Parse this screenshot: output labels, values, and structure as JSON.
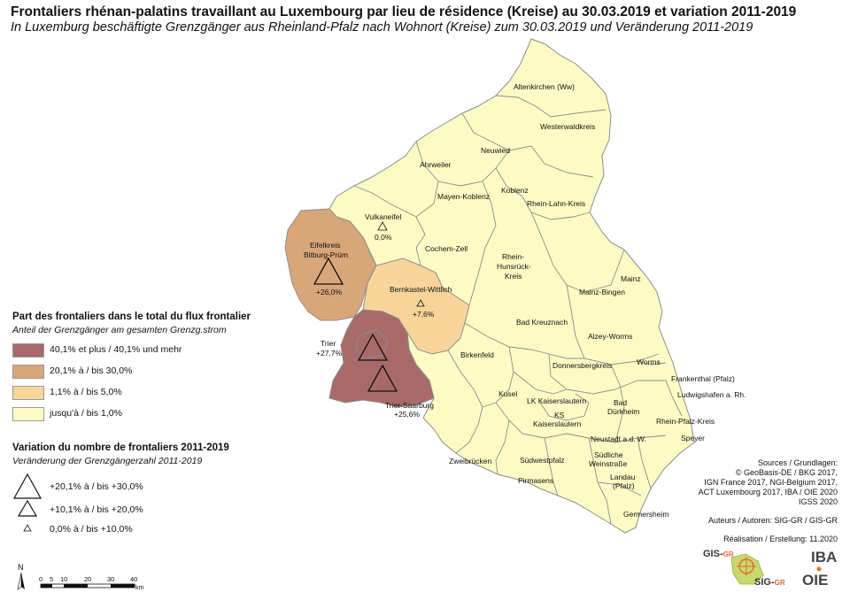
{
  "title": "Frontaliers rhénan-palatins travaillant au Luxembourg par lieu de résidence (Kreise) au 30.03.2019 et variation 2011-2019",
  "subtitle": "In Luxemburg beschäftigte Grenzgänger aus Rheinland-Pfalz nach Wohnort (Kreise) zum 30.03.2019 und Veränderung 2011-2019",
  "colors": {
    "cat1": "#a86a68",
    "cat2": "#d9a679",
    "cat3": "#f7d59a",
    "cat4": "#fdfbc4",
    "border": "#8c8c8c"
  },
  "districts": [
    "Altenkirchen (Ww)",
    "Westerwaldkreis",
    "Neuwied",
    "Ahrweiler",
    "Koblenz",
    "Mayen-Koblenz",
    "Rhein-Lahn-Kreis",
    "Vulkaneifel",
    "Eifelkreis Bitburg-Prüm",
    "Cochem-Zell",
    "Rhein-Hunsrück-Kreis",
    "Bernkastel-Wittlich",
    "Mainz",
    "Mainz-Bingen",
    "Bad Kreuznach",
    "Alzey-Worms",
    "Trier",
    "Birkenfeld",
    "Donnersbergkreis",
    "Worms",
    "Frankenthal (Pfalz)",
    "Ludwigshafen a. Rh.",
    "Trier-Saarburg",
    "Kusel",
    "LK Kaiserslautern",
    "Bad Dürkheim",
    "KS Kaiserslautern",
    "Rhein-Pfalz-Kreis",
    "Neustadt a.d. W.",
    "Speyer",
    "Zweibrücken",
    "Südwestpfalz",
    "Südliche Weinstraße",
    "Pirmasens",
    "Landau (Pfalz)",
    "Germersheim"
  ],
  "map_labels": {
    "altenkirchen": "Altenkirchen (Ww)",
    "westerwald": "Westerwaldkreis",
    "neuwied": "Neuwied",
    "ahrweiler": "Ahrweiler",
    "koblenz": "Koblenz",
    "mayen": "Mayen-Koblenz",
    "rheinlahn": "Rhein-Lahn-Kreis",
    "vulkaneifel": "Vulkaneifel",
    "vulkaneifel_var": "0,0%",
    "eifel1": "Eifelkreis",
    "eifel2": "Bitburg-Prüm",
    "eifel_var": "+26,0%",
    "cochem": "Cochem-Zell",
    "rh1": "Rhein-",
    "rh2": "Hunsrück-",
    "rh3": "Kreis",
    "bernkastel": "Bernkastel-Wittlich",
    "bernkastel_var": "+7,6%",
    "mainz": "Mainz",
    "mainzbingen": "Mainz-Bingen",
    "badkreuznach": "Bad Kreuznach",
    "alzey": "Alzey-Worms",
    "trier": "Trier",
    "trier_var": "+27,7%",
    "birkenfeld": "Birkenfeld",
    "donnersberg": "Donnersbergkreis",
    "worms": "Worms",
    "frankenthal": "Frankenthal (Pfalz)",
    "ludwigshafen": "Ludwigshafen a. Rh.",
    "triersaarburg": "Trier-Saarburg",
    "triersaarburg_var": "+25,6%",
    "kusel": "Kusel",
    "lkkl": "LK Kaiserslautern",
    "bd1": "Bad",
    "bd2": "Dürkheim",
    "ks1": "KS",
    "ks2": "Kaiserslautern",
    "rheinpfalz": "Rhein-Pfalz-Kreis",
    "neustadt": "Neustadt a.d. W.",
    "speyer": "Speyer",
    "zweibruecken": "Zweibrücken",
    "suedwestpfalz": "Südwestpfalz",
    "sw1": "Südliche",
    "sw2": "Weinstraße",
    "pirmasens": "Pirmasens",
    "landau1": "Landau",
    "landau2": "(Pfalz)",
    "germersheim": "Germersheim"
  },
  "legend_share": {
    "title": "Part des frontaliers dans le total du flux frontalier",
    "subtitle": "Anteil der Grenzgänger am gesamten Grenzg.strom",
    "classes": [
      {
        "label": "40,1% et plus / 40,1% und mehr",
        "color": "#a86a68"
      },
      {
        "label": "20,1% à / bis 30,0%",
        "color": "#d9a679"
      },
      {
        "label": "1,1% à / bis 5,0%",
        "color": "#f7d59a"
      },
      {
        "label": "jusqu'à / bis 1,0%",
        "color": "#fdfbc4"
      }
    ]
  },
  "legend_change": {
    "title": "Variation du nombre de frontaliers 2011-2019",
    "subtitle": "Veränderung der Grenzgängerzahl 2011-2019",
    "classes": [
      {
        "label": "+20,1% à / bis +30,0%"
      },
      {
        "label": "+10,1% à / bis +20,0%"
      },
      {
        "label": "0,0% à / bis +10,0%"
      }
    ]
  },
  "scale": {
    "north": "N",
    "ticks": [
      "0",
      "5",
      "10",
      "20",
      "30",
      "40"
    ],
    "unit": "km"
  },
  "sources": {
    "line1": "Sources / Grundlagen:",
    "line2": "© GeoBasis-DE / BKG 2017,",
    "line3": "IGN France 2017, NGI-Belgium 2017,",
    "line4": "ACT Luxembourg 2017, IBA / OIE 2020",
    "line5": "IGSS 2020",
    "authors": "Auteurs / Autoren: SIG-GR / GIS-GR",
    "realisation": "Réalisation / Erstellung: 11.2020"
  },
  "logos": {
    "gis": "GIS-",
    "gis_sub": "GR",
    "sig": "SIG-",
    "sig_sub": "GR",
    "iba": "IBA",
    "oie": "OIE"
  }
}
